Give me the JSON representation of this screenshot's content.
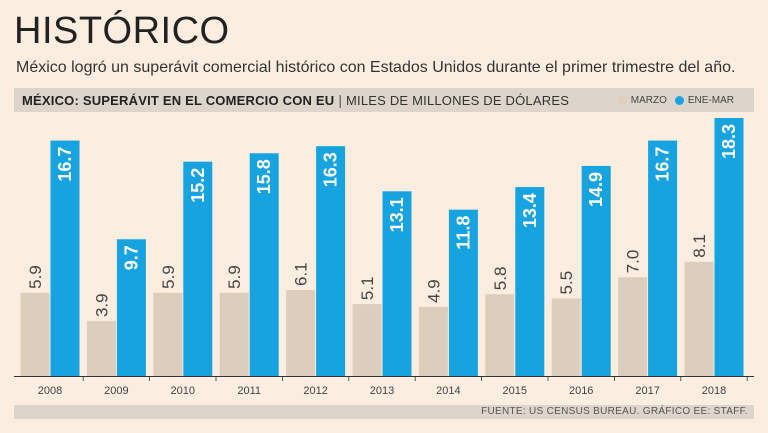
{
  "title": "HISTÓRICO",
  "subtitle": "México logró un superávit comercial histórico con Estados Unidos durante el primer trimestre del año.",
  "header": {
    "chart_title": "MÉXICO: SUPERÁVIT EN EL COMERCIO CON EU",
    "separator": "|",
    "unit": "MILES DE MILLONES DE DÓLARES"
  },
  "footer": "FUENTE: US CENSUS BUREAU.  GRÁFICO EE: STAFF.",
  "colors": {
    "marzo": "#dccdbc",
    "ene_mar": "#17a3e0",
    "axis": "#333333"
  },
  "chart_data": {
    "type": "bar",
    "title": "MÉXICO: SUPERÁVIT EN EL COMERCIO CON EU",
    "ylabel": "MILES DE MILLONES DE DÓLARES",
    "xlabel": "",
    "categories": [
      "2008",
      "2009",
      "2010",
      "2011",
      "2012",
      "2013",
      "2014",
      "2015",
      "2016",
      "2017",
      "2018"
    ],
    "series": [
      {
        "name": "MARZO",
        "values": [
          5.9,
          3.9,
          5.9,
          5.9,
          6.1,
          5.1,
          4.9,
          5.8,
          5.5,
          7.0,
          8.1
        ],
        "labels": [
          "5.9",
          "3.9",
          "5.9",
          "5.9",
          "6.1",
          "5.1",
          "4.9",
          "5.8",
          "5.5",
          "7.0",
          "8.1"
        ]
      },
      {
        "name": "ENE-MAR",
        "values": [
          16.7,
          9.7,
          15.2,
          15.8,
          16.3,
          13.1,
          11.8,
          13.4,
          14.9,
          16.7,
          18.3
        ],
        "labels": [
          "16.7",
          "9.7",
          "15.2",
          "15.8",
          "16.3",
          "13.1",
          "11.8",
          "13.4",
          "14.9",
          "16.7",
          "18.3"
        ]
      }
    ],
    "ylim": [
      0,
      18.3
    ],
    "legend_position": "top-right",
    "grid": false
  }
}
